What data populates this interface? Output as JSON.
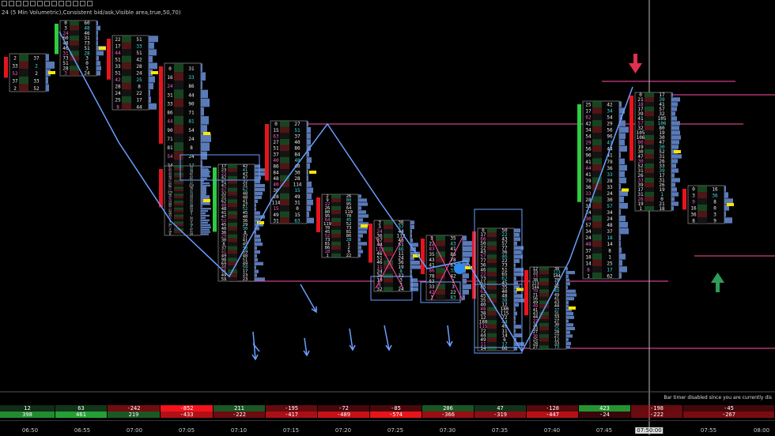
{
  "header": {
    "indicator_text": "24 (5 Min Volumetric),Consistent bid/ask,Visible area,true,50,70)"
  },
  "status_message": "Bar timer disabled since you are currently dis",
  "time_axis": {
    "ticks": [
      "06:50",
      "06:55",
      "07:00",
      "07:05",
      "07:10",
      "07:15",
      "07:20",
      "07:25",
      "07:30",
      "07:35",
      "07:40",
      "07:45",
      "07:50:00",
      "07:55",
      "08:00"
    ],
    "current_index": 12
  },
  "delta_rows": {
    "row1": [
      "12",
      "63",
      "-242",
      "-852",
      "211",
      "-195",
      "-72",
      "-85",
      "206",
      "47",
      "-128",
      "423",
      "-198",
      "-45"
    ],
    "row2": [
      "398",
      "461",
      "219",
      "-433",
      "-222",
      "-417",
      "-489",
      "-574",
      "-366",
      "-319",
      "-447",
      "-24",
      "-222",
      "-267"
    ]
  },
  "colors": {
    "bull": "#2ecc40",
    "bear": "#e8141c",
    "accent": "#6aa0ff",
    "poc": "#ffe600",
    "line": "#ff4fa8"
  },
  "bars": [
    {
      "label": "bar-0645",
      "col": [
        "2",
        "33",
        "52",
        "37",
        "2"
      ]
    },
    {
      "label": "bar-0650",
      "col": [
        "0",
        "3",
        "24",
        "60",
        "48",
        "46",
        "31",
        "73",
        "51",
        "28",
        "3"
      ]
    },
    {
      "label": "bar-0655",
      "col": [
        "22",
        "17",
        "44",
        "51",
        "33",
        "51",
        "42",
        "28",
        "24",
        "25",
        "8"
      ]
    },
    {
      "label": "bar-0700",
      "col": [
        "0",
        "16",
        "24",
        "31",
        "33",
        "86",
        "44",
        "90",
        "71",
        "81",
        "54",
        "24",
        "8",
        "24",
        "17",
        "9"
      ]
    },
    {
      "label": "bar-0705",
      "col": [
        "47",
        "31",
        "34",
        "33",
        "34",
        "78",
        "62",
        "21",
        "82",
        "77",
        "27",
        "279",
        "40",
        "17",
        "30",
        "13",
        "34",
        "12",
        "11",
        "31",
        "28",
        "33",
        "16",
        "9",
        "7",
        "34",
        "71",
        "9",
        "10",
        "8"
      ]
    },
    {
      "label": "bar-0710",
      "col": [
        "17",
        "23",
        "23",
        "42",
        "41",
        "47",
        "47",
        "32",
        "31",
        "62",
        "48",
        "48",
        "41",
        "47",
        "52",
        "45",
        "40",
        "36",
        "29",
        "30",
        "8",
        "37",
        "41",
        "49",
        "98",
        "69",
        "48",
        "51",
        "49",
        "59"
      ]
    },
    {
      "label": "bar-0715",
      "col": [
        "0",
        "15",
        "63",
        "27",
        "51",
        "37",
        "40",
        "86",
        "84",
        "48",
        "40",
        "30",
        "28",
        "114",
        "15",
        "49",
        "31"
      ]
    },
    {
      "label": "bar-0720",
      "col": [
        "2",
        "9",
        "22",
        "26",
        "80",
        "95",
        "64",
        "119",
        "70",
        "45",
        "52",
        "73",
        "81",
        "86",
        "28",
        "1"
      ]
    },
    {
      "label": "bar-0725",
      "col": [
        "3",
        "3",
        "24",
        "36",
        "37",
        "44",
        "113",
        "46",
        "51",
        "46",
        "11",
        "24",
        "36",
        "19",
        "8",
        "32"
      ]
    },
    {
      "label": "bar-0730",
      "col": [
        "3",
        "22",
        "83",
        "35",
        "43",
        "41",
        "86",
        "78",
        "63",
        "33",
        "42",
        "1"
      ]
    },
    {
      "label": "bar-0735",
      "col": [
        "6",
        "17",
        "66",
        "50",
        "22",
        "43",
        "57",
        "77",
        "36",
        "46",
        "22",
        "73",
        "51",
        "65",
        "62",
        "45",
        "35",
        "40",
        "48",
        "38",
        "12",
        "180",
        "115",
        "72",
        "44",
        "49",
        "11",
        "14"
      ]
    },
    {
      "label": "bar-0740",
      "col": [
        "12",
        "33",
        "73",
        "38",
        "123",
        "144",
        "70",
        "71",
        "56",
        "49",
        "49",
        "41",
        "43",
        "44",
        "37",
        "31",
        "33",
        "27",
        "30",
        "25",
        "28",
        "27"
      ]
    },
    {
      "label": "bar-0745",
      "col": [
        "25",
        "17",
        "62",
        "42",
        "34",
        "54",
        "29",
        "56",
        "96",
        "41",
        "44",
        "41",
        "79",
        "36",
        "33",
        "28",
        "33",
        "24",
        "30",
        "57",
        "34",
        "24",
        "48",
        "37",
        "18",
        "14",
        "8",
        "1"
      ]
    },
    {
      "label": "bar-0750",
      "col": [
        "0",
        "21",
        "18",
        "17",
        "39",
        "41",
        "57",
        "32",
        "105",
        "106",
        "80",
        "19",
        "30",
        "47",
        "30",
        "52",
        "31",
        "26",
        "33",
        "39",
        "17",
        "31",
        "26",
        "19",
        "1"
      ]
    },
    {
      "label": "bar-0755",
      "col": [
        "0",
        "3",
        "9",
        "16",
        "36",
        "8"
      ]
    }
  ]
}
